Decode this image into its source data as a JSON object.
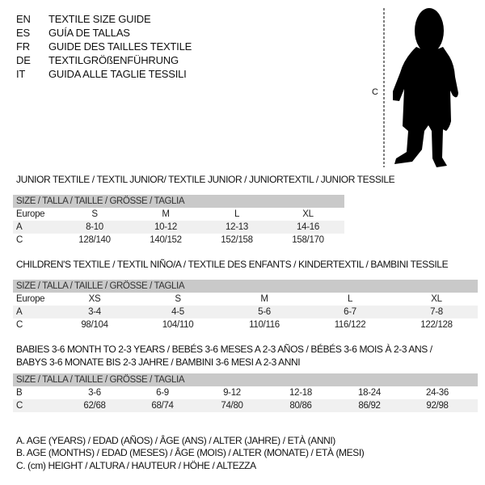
{
  "languages": [
    {
      "code": "EN",
      "title": "TEXTILE SIZE GUIDE"
    },
    {
      "code": "ES",
      "title": "GUÍA DE TALLAS"
    },
    {
      "code": "FR",
      "title": "GUIDE DES TAILLES TEXTILE"
    },
    {
      "code": "DE",
      "title": "TEXTILGRÖßENFÜHRUNG"
    },
    {
      "code": "IT",
      "title": "GUIDA ALLE TAGLIE TESSILI"
    }
  ],
  "figure": {
    "measure_label": "C",
    "icon": "baby-silhouette"
  },
  "size_header": "SIZE / TALLA / TAILLE / GRÖSSE / TAGLIA",
  "sections": [
    {
      "title": "JUNIOR TEXTILE / TEXTIL JUNIOR/ TEXTILE JUNIOR / JUNIORTEXTIL / JUNIOR TESSILE",
      "rows": [
        {
          "label": "Europe",
          "values": [
            "S",
            "M",
            "L",
            "XL"
          ]
        },
        {
          "label": "A",
          "values": [
            "8-10",
            "10-12",
            "12-13",
            "14-16"
          ]
        },
        {
          "label": "C",
          "values": [
            "128/140",
            "140/152",
            "152/158",
            "158/170"
          ]
        }
      ]
    },
    {
      "title": "CHILDREN'S TEXTILE / TEXTIL NIÑO/A / TEXTILE DES ENFANTS / KINDERTEXTIL / BAMBINI TESSILE",
      "rows": [
        {
          "label": "Europe",
          "values": [
            "XS",
            "S",
            "M",
            "L",
            "XL"
          ]
        },
        {
          "label": "A",
          "values": [
            "3-4",
            "4-5",
            "5-6",
            "6-7",
            "7-8"
          ]
        },
        {
          "label": "C",
          "values": [
            "98/104",
            "104/110",
            "110/116",
            "116/122",
            "122/128"
          ]
        }
      ]
    },
    {
      "title": "BABIES 3-6 MONTH TO 2-3 YEARS / BEBÉS 3-6 MESES A 2-3 AÑOS / BÉBÉS 3-6 MOIS À 2-3 ANS /",
      "title2": "BABYS 3-6 MONATE BIS 2-3 JAHRE / BAMBINI 3-6 MESI A 2-3 ANNI",
      "rows": [
        {
          "label": "B",
          "values": [
            "3-6",
            "6-9",
            "9-12",
            "12-18",
            "18-24",
            "24-36"
          ]
        },
        {
          "label": "C",
          "values": [
            "62/68",
            "68/74",
            "74/80",
            "80/86",
            "86/92",
            "92/98"
          ]
        }
      ]
    }
  ],
  "legend": [
    "A. AGE (YEARS) / EDAD (AÑOS) / ÂGE (ANS) / ALTER (JAHRE) / ETÀ (ANNI)",
    "B. AGE (MONTHS) / EDAD (MESES) / ÂGE (MOIS) / ALTER (MONATE) / ETÀ (MESI)",
    "C. (cm) HEIGHT / ALTURA / HAUTEUR / HÖHE / ALTEZZA"
  ]
}
